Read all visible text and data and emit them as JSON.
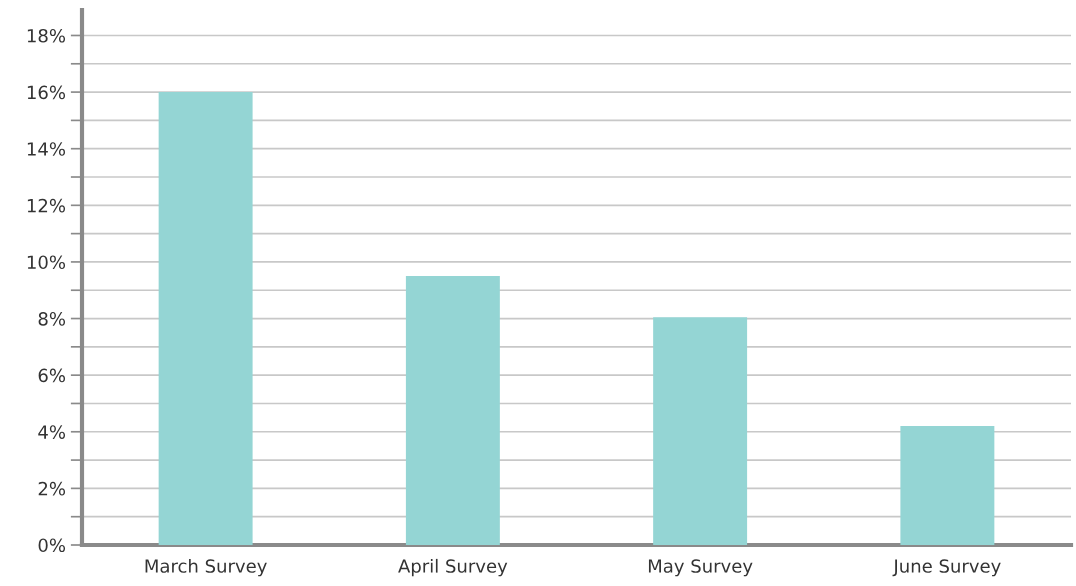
{
  "chart_data": {
    "type": "bar",
    "categories": [
      "March Survey",
      "April Survey",
      "May Survey",
      "June Survey"
    ],
    "values": [
      16,
      9.5,
      8.05,
      4.2
    ],
    "color": "#94d5d4",
    "ylim": [
      0,
      18.9
    ],
    "yticks": [
      {
        "value": 0,
        "label": "0%"
      },
      {
        "value": 1,
        "label": null
      },
      {
        "value": 2,
        "label": "2%"
      },
      {
        "value": 3,
        "label": null
      },
      {
        "value": 4,
        "label": "4%"
      },
      {
        "value": 5,
        "label": null
      },
      {
        "value": 6,
        "label": "6%"
      },
      {
        "value": 7,
        "label": null
      },
      {
        "value": 8,
        "label": "8%"
      },
      {
        "value": 9,
        "label": null
      },
      {
        "value": 10,
        "label": "10%"
      },
      {
        "value": 11,
        "label": null
      },
      {
        "value": 12,
        "label": "12%"
      },
      {
        "value": 13,
        "label": null
      },
      {
        "value": 14,
        "label": "14%"
      },
      {
        "value": 15,
        "label": null
      },
      {
        "value": 16,
        "label": "16%"
      },
      {
        "value": 17,
        "label": null
      },
      {
        "value": 18,
        "label": "18%"
      }
    ],
    "grid": "y"
  }
}
